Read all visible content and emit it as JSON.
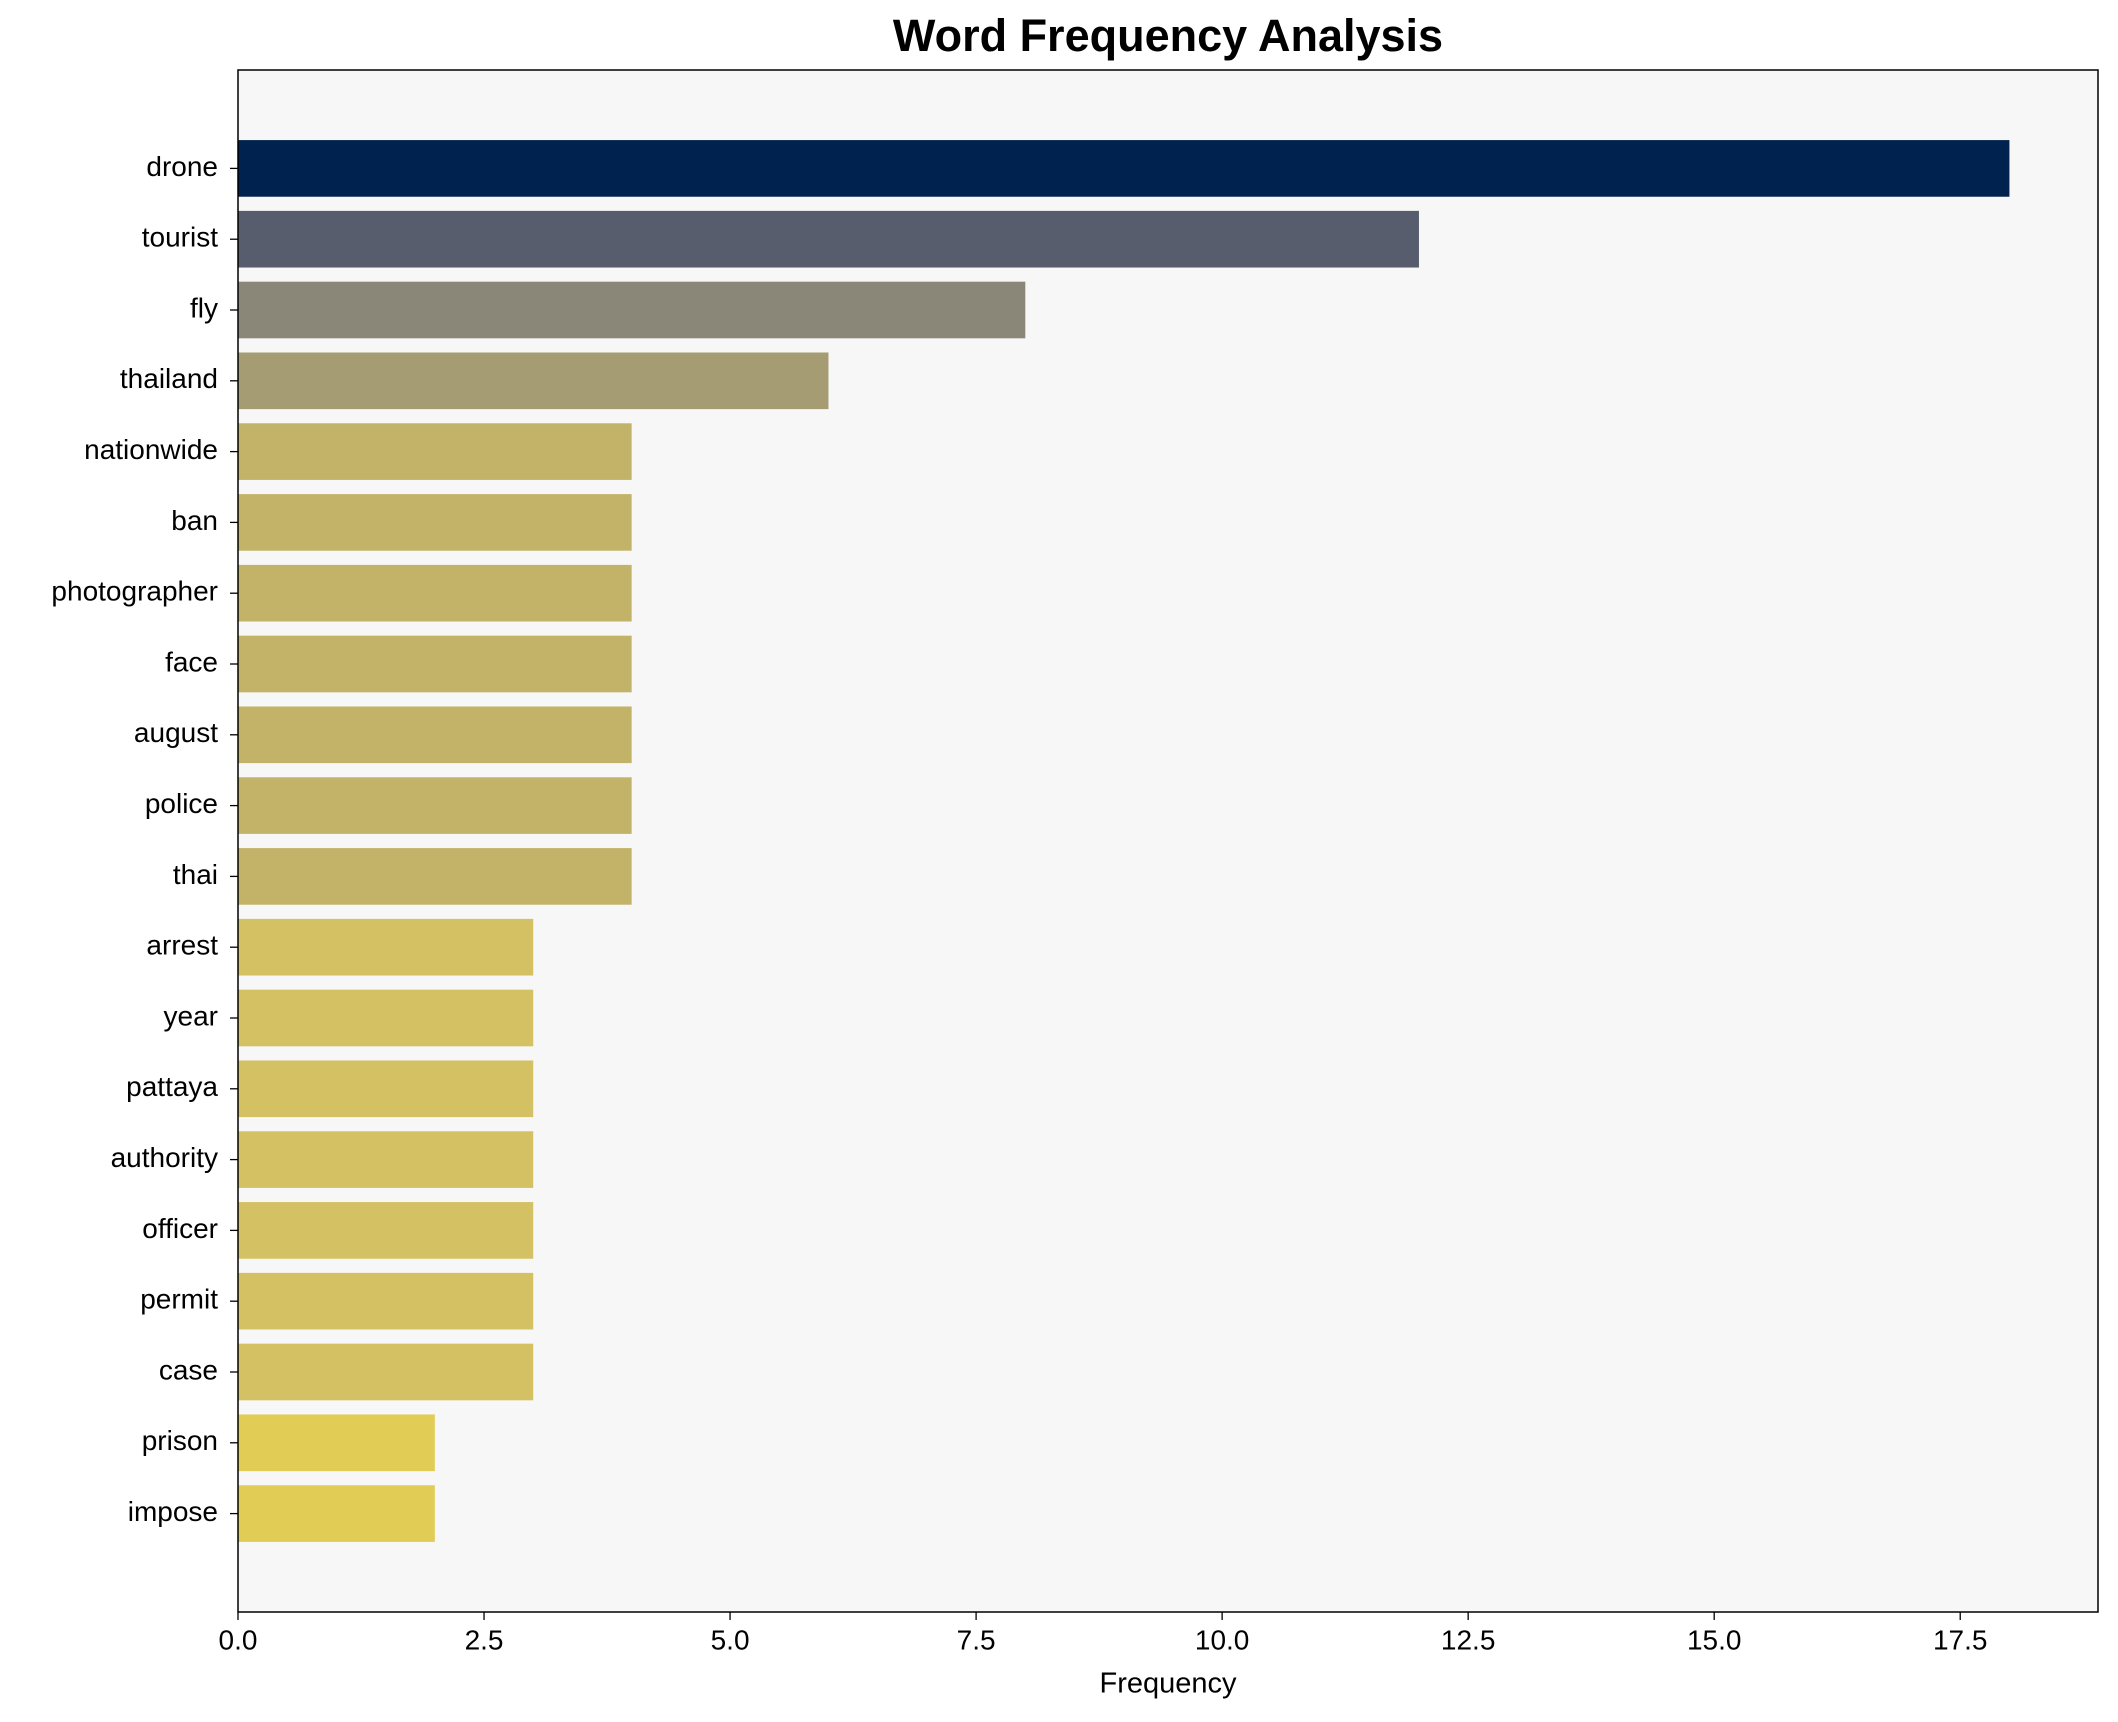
{
  "chart_data": {
    "type": "barh",
    "title": "Word Frequency Analysis",
    "xlabel": "Frequency",
    "categories": [
      "drone",
      "tourist",
      "fly",
      "thailand",
      "nationwide",
      "ban",
      "photographer",
      "face",
      "august",
      "police",
      "thai",
      "arrest",
      "year",
      "pattaya",
      "authority",
      "officer",
      "permit",
      "case",
      "prison",
      "impose"
    ],
    "values": [
      18,
      12,
      8,
      6,
      4,
      4,
      4,
      4,
      4,
      4,
      4,
      3,
      3,
      3,
      3,
      3,
      3,
      3,
      2,
      2
    ],
    "colors": [
      "#00224e",
      "#575d6d",
      "#8a8678",
      "#a59c74",
      "#c3b369",
      "#c3b369",
      "#c3b369",
      "#c3b369",
      "#c3b369",
      "#c3b369",
      "#c3b369",
      "#d3c164",
      "#d3c164",
      "#d3c164",
      "#d3c164",
      "#d3c164",
      "#d3c164",
      "#d3c164",
      "#e1cc55",
      "#e1cc55"
    ],
    "xlim": [
      0,
      18.9
    ],
    "xticks": [
      {
        "value": 0,
        "label": "0.0"
      },
      2.5,
      {
        "value": 5,
        "label": "5.0"
      },
      7.5,
      {
        "value": 10,
        "label": "10.0"
      },
      12.5,
      {
        "value": 15,
        "label": "15.0"
      },
      17.5
    ],
    "grid": false
  }
}
